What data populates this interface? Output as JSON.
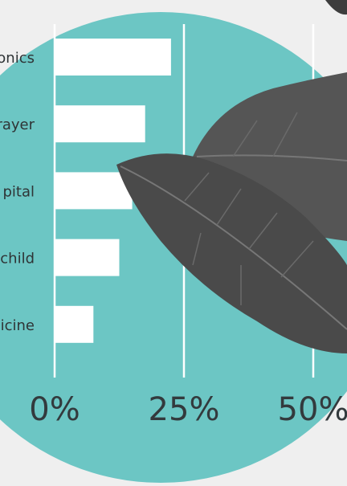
{
  "chart_data": {
    "type": "bar",
    "orientation": "horizontal",
    "categories": [
      "onics",
      "rayer",
      "pital",
      "child",
      "icine"
    ],
    "values": [
      22.5,
      17.5,
      15,
      12.5,
      7.5
    ],
    "color": "#ffffff",
    "xlim": [
      0,
      55
    ],
    "xticks": [
      {
        "value": 0,
        "label": "0%"
      },
      {
        "value": 25,
        "label": "25%"
      },
      {
        "value": 50,
        "label": "50%"
      }
    ],
    "grid": true
  }
}
